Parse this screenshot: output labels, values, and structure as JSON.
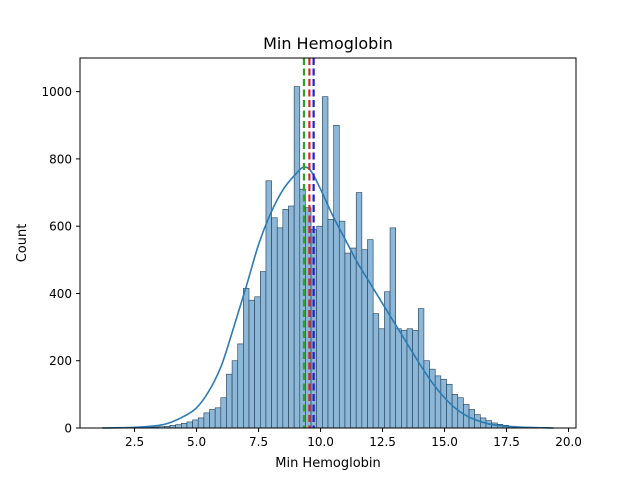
{
  "chart_data": {
    "type": "bar",
    "title": "Min Hemoglobin",
    "xlabel": "Min Hemoglobin",
    "ylabel": "Count",
    "xlim": [
      0.3,
      20.3
    ],
    "ylim": [
      0,
      1100
    ],
    "xticks": [
      2.5,
      5.0,
      7.5,
      10.0,
      12.5,
      15.0,
      17.5,
      20.0
    ],
    "xtick_labels": [
      "2.5",
      "5.0",
      "7.5",
      "10.0",
      "12.5",
      "15.0",
      "17.5",
      "20.0"
    ],
    "yticks": [
      0,
      200,
      400,
      600,
      800,
      1000
    ],
    "ytick_labels": [
      "0",
      "200",
      "400",
      "600",
      "800",
      "1000"
    ],
    "grid": false,
    "colors": {
      "bar_fill": "#8db7d6",
      "bar_edge": "#1f3b56",
      "kde_line": "#2b7bb4",
      "mean_line": "#d62728",
      "median_line": "#2ca02c",
      "mode_line": "#1f1fcf"
    },
    "histogram": {
      "bin_start": 1.2,
      "bin_width": 0.2275,
      "counts": [
        1,
        0,
        1,
        0,
        1,
        1,
        2,
        2,
        3,
        3,
        4,
        5,
        8,
        10,
        14,
        18,
        24,
        30,
        45,
        55,
        60,
        90,
        160,
        200,
        250,
        415,
        380,
        390,
        465,
        735,
        625,
        595,
        650,
        660,
        1015,
        710,
        655,
        590,
        600,
        985,
        620,
        900,
        615,
        520,
        535,
        700,
        530,
        560,
        340,
        295,
        405,
        595,
        295,
        290,
        295,
        290,
        355,
        200,
        175,
        155,
        145,
        130,
        100,
        90,
        70,
        55,
        40,
        30,
        22,
        15,
        11,
        8,
        5,
        3,
        2,
        1,
        1,
        0,
        1,
        0
      ]
    },
    "kde": {
      "x": [
        1.2,
        2.5,
        3.5,
        4.0,
        4.5,
        5.0,
        5.5,
        6.0,
        6.5,
        7.0,
        7.5,
        8.0,
        8.5,
        9.0,
        9.3,
        9.6,
        10.0,
        10.5,
        11.0,
        11.5,
        12.0,
        12.5,
        13.0,
        13.5,
        14.0,
        14.5,
        15.0,
        15.5,
        16.0,
        16.5,
        17.0,
        18.0,
        19.4
      ],
      "y": [
        0,
        2,
        8,
        18,
        35,
        60,
        110,
        185,
        300,
        420,
        545,
        640,
        710,
        755,
        775,
        765,
        710,
        630,
        560,
        490,
        430,
        370,
        310,
        250,
        190,
        135,
        90,
        55,
        32,
        18,
        9,
        3,
        0
      ]
    },
    "vertical_lines": [
      {
        "kind": "median",
        "x": 9.33
      },
      {
        "kind": "mean",
        "x": 9.55
      },
      {
        "kind": "mode",
        "x": 9.72
      }
    ]
  }
}
